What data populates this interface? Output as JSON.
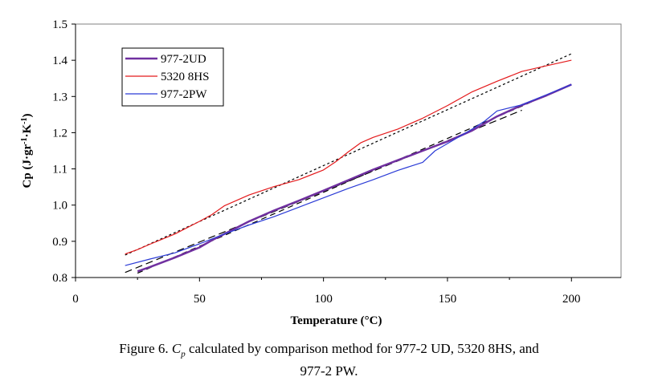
{
  "chart_data": {
    "type": "line",
    "title": "",
    "xlabel": "Temperature (°C)",
    "ylabel": "Cp (J·gr-1·K-1)",
    "xlim": [
      0,
      220
    ],
    "ylim": [
      0.8,
      1.5
    ],
    "xticks": [
      0,
      50,
      100,
      150,
      200
    ],
    "yticks": [
      0.8,
      0.9,
      1.0,
      1.1,
      1.2,
      1.3,
      1.4,
      1.5
    ],
    "ytick_labels": [
      "0.8",
      "0.9",
      "1.0",
      "1.1",
      "1.2",
      "1.3",
      "1.4",
      "1.5"
    ],
    "grid": false,
    "legend_position": "top-left",
    "series": [
      {
        "name": "977-2UD",
        "color": "#7030a0",
        "stroke_width": 2.5,
        "x": [
          25,
          30,
          40,
          50,
          55,
          60,
          70,
          80,
          90,
          100,
          110,
          120,
          130,
          140,
          150,
          160,
          170,
          180,
          190,
          200
        ],
        "y": [
          0.817,
          0.829,
          0.855,
          0.883,
          0.903,
          0.92,
          0.955,
          0.985,
          1.012,
          1.04,
          1.069,
          1.098,
          1.124,
          1.15,
          1.176,
          1.206,
          1.245,
          1.276,
          1.303,
          1.333
        ]
      },
      {
        "name": "5320 8HS",
        "color": "#e41a1c",
        "stroke_width": 1.2,
        "x": [
          20,
          25,
          30,
          40,
          50,
          55,
          60,
          70,
          80,
          90,
          100,
          105,
          110,
          115,
          120,
          130,
          140,
          150,
          160,
          170,
          180,
          190,
          200
        ],
        "y": [
          0.865,
          0.877,
          0.892,
          0.92,
          0.955,
          0.974,
          0.998,
          1.028,
          1.051,
          1.07,
          1.097,
          1.12,
          1.147,
          1.172,
          1.187,
          1.21,
          1.24,
          1.275,
          1.313,
          1.342,
          1.369,
          1.385,
          1.4
        ]
      },
      {
        "name": "977-2PW",
        "color": "#2b3bd6",
        "stroke_width": 1.2,
        "x": [
          20,
          30,
          40,
          50,
          60,
          70,
          80,
          90,
          100,
          110,
          120,
          130,
          140,
          145,
          150,
          160,
          165,
          170,
          180,
          190,
          200
        ],
        "y": [
          0.833,
          0.851,
          0.868,
          0.893,
          0.92,
          0.945,
          0.968,
          0.994,
          1.02,
          1.046,
          1.07,
          1.096,
          1.118,
          1.15,
          1.17,
          1.21,
          1.232,
          1.26,
          1.277,
          1.305,
          1.333
        ]
      }
    ],
    "trendlines": [
      {
        "of": "5320 8HS",
        "color": "#000000",
        "dash": "3,3",
        "x": [
          20,
          200
        ],
        "y": [
          0.862,
          1.418
        ]
      },
      {
        "of": "977-2UD",
        "color": "#000000",
        "dash": "7,5",
        "x": [
          25,
          200
        ],
        "y": [
          0.812,
          1.333
        ]
      },
      {
        "of": "977-2PW",
        "color": "#000000",
        "dash": "9,5",
        "x": [
          20,
          180
        ],
        "y": [
          0.814,
          1.262
        ]
      }
    ]
  },
  "caption": {
    "line1_prefix": "Figure 6. ",
    "line1_symbol": "C",
    "line1_sub": "p",
    "line1_suffix": " calculated by comparison method for 977-2 UD, 5320 8HS, and",
    "line2": "977-2 PW."
  }
}
